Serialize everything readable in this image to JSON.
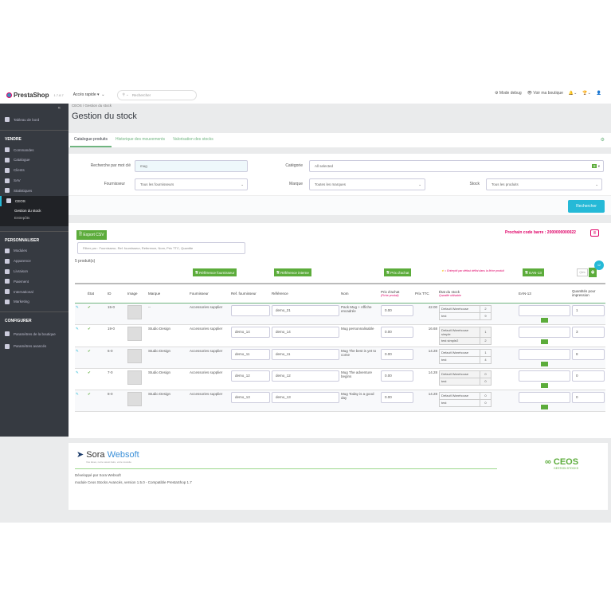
{
  "header": {
    "brand": "PrestaShop",
    "version": "1.7.8.7",
    "quick_access": "Accès rapide",
    "search_placeholder": "Rechercher",
    "debug": "Mode debug",
    "view_shop": "Voir ma boutique"
  },
  "sidebar": {
    "dashboard": "Tableau de bord",
    "sections": [
      {
        "title": "VENDRE",
        "items": [
          "Commandes",
          "Catalogue",
          "Clients",
          "SAV",
          "Statistiques"
        ]
      },
      {
        "title": "PERSONNALISER",
        "items": [
          "Modules",
          "Apparence",
          "Livraison",
          "Paiement",
          "International",
          "Marketing"
        ]
      },
      {
        "title": "CONFIGURER",
        "items": [
          "Paramètres de la boutique",
          "Paramètres avancés"
        ]
      }
    ],
    "ceos": "CEOS",
    "ceos_sub": [
      "Gestion du stock",
      "Entrepôts"
    ]
  },
  "breadcrumb": {
    "parent": "CEOS /",
    "current": "Gestion du stock"
  },
  "page_title": "Gestion du stock",
  "tabs": [
    "Catalogue produits",
    "Historique des mouvements",
    "Valorisation des stocks"
  ],
  "filters": {
    "keyword_label": "Recherche par mot clé",
    "keyword_value": "mug",
    "category_label": "Catégorie",
    "category_value": "All selected",
    "category_count": "8",
    "supplier_label": "Fournisseur",
    "supplier_value": "Tous les fournisseurs",
    "brand_label": "Marque",
    "brand_value": "Toutes les marques",
    "stock_label": "Stock",
    "stock_value": "Tous les produits",
    "search_button": "Rechercher"
  },
  "list": {
    "export": "Export CSV",
    "filter_placeholder": "Filtrer par : Fournisseur, Ref. fournisseur, Reference, Nom, Prix TTC, Quantite",
    "count": "5 produit(s)",
    "next_barcode": "Prochain code barre : 2000000000022",
    "btn_ref_supplier": "Référence fournisseur",
    "btn_ref_internal": "Référence interne",
    "btn_buy_price": "Prix d'achat",
    "btn_ean": "EAN-13",
    "note": "= Entrepôt par défaut défini dans la fiche produit",
    "qty_placeholder": "Qtés",
    "badge": "12",
    "columns": {
      "state": "État",
      "id": "ID",
      "image": "Image",
      "brand": "Marque",
      "supplier": "Fournisseur",
      "ref_supplier": "Ref. fournisseur",
      "reference": "Référence",
      "name": "Nom",
      "buy_price": "Prix d'achat",
      "buy_price_sub": "(Fiche produit)",
      "price": "Prix TTC",
      "stock": "État du stock",
      "stock_sub": "Quantité utilisable",
      "ean": "EAN-13",
      "print_qty": "Quantités pour impression"
    },
    "rows": [
      {
        "id": "15-0",
        "brand": "--",
        "supplier": "Accessories supplier",
        "ref_supplier": "",
        "reference": "demo_21",
        "name": "Pack Mug + Affiche encadrée",
        "buy": "0.00",
        "price": "42.00",
        "stock": [
          [
            "Default Warehouse",
            "2"
          ],
          [
            "test",
            "9"
          ]
        ],
        "qty": "1"
      },
      {
        "id": "19-0",
        "brand": "Studio Design",
        "supplier": "Accessories supplier",
        "ref_supplier": "demo_14",
        "reference": "demo_14",
        "name": "Mug personnalisable",
        "buy": "0.00",
        "price": "16.68",
        "stock": [
          [
            "Default Warehouse simple",
            "1"
          ],
          [
            "test simple2",
            "2"
          ]
        ],
        "qty": "3"
      },
      {
        "id": "6-0",
        "brand": "Studio Design",
        "supplier": "Accessories supplier",
        "ref_supplier": "demo_11",
        "reference": "demo_11",
        "name": "Mug The best is yet to come",
        "buy": "0.00",
        "price": "14.28",
        "stock": [
          [
            "Default Warehouse",
            "1"
          ],
          [
            "test",
            "4"
          ]
        ],
        "qty": "8"
      },
      {
        "id": "7-0",
        "brand": "Studio Design",
        "supplier": "Accessories supplier",
        "ref_supplier": "demo_12",
        "reference": "demo_12",
        "name": "Mug The adventure begins",
        "buy": "0.00",
        "price": "14.28",
        "stock": [
          [
            "Default Warehouse",
            "0"
          ],
          [
            "test",
            "0"
          ]
        ],
        "qty": "0"
      },
      {
        "id": "8-0",
        "brand": "Studio Design",
        "supplier": "Accessories supplier",
        "ref_supplier": "demo_13",
        "reference": "demo_13",
        "name": "Mug Today is a good day",
        "buy": "0.00",
        "price": "14.28",
        "stock": [
          [
            "Default Warehouse",
            "0"
          ],
          [
            "test",
            "0"
          ]
        ],
        "qty": "0"
      }
    ]
  },
  "footer": {
    "logo": "Sora Websoft",
    "tagline": "Vos idées, notre savoir-faire, votre réussite",
    "dev": "Développé par Sora Websoft",
    "module": "module Ceos Stocks Avancés, version 1.5.0 - Compatible PrestaShop 1.7",
    "ceos_logo": "CEOS GESTION STOCKS"
  },
  "colors": {
    "accent": "#25b9d7",
    "green": "#5cac3b",
    "pink": "#df0067",
    "sidebar": "#363a41"
  }
}
